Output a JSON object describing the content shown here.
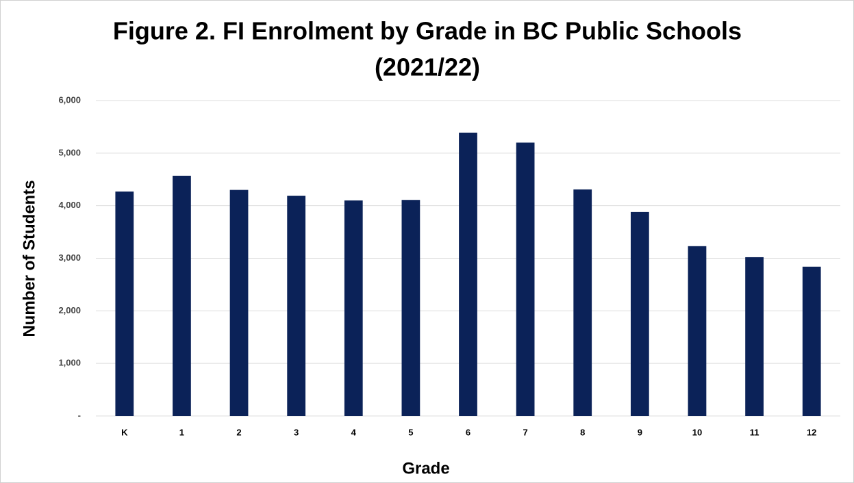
{
  "chart_data": {
    "type": "bar",
    "title": [
      "Figure 2. FI Enrolment by Grade in BC Public Schools",
      "(2021/22)"
    ],
    "x_label": "Grade",
    "y_label": "Number of Students",
    "categories": [
      "K",
      "1",
      "2",
      "3",
      "4",
      "5",
      "6",
      "7",
      "8",
      "9",
      "10",
      "11",
      "12"
    ],
    "values": [
      4270,
      4570,
      4300,
      4190,
      4100,
      4110,
      5390,
      5200,
      4310,
      3880,
      3230,
      3020,
      2840
    ],
    "color": "#0b2258",
    "ylim": [
      0,
      6000
    ],
    "yticks": [
      {
        "value": 0,
        "label": "-"
      },
      {
        "value": 1000,
        "label": "1,000"
      },
      {
        "value": 2000,
        "label": "2,000"
      },
      {
        "value": 3000,
        "label": "3,000"
      },
      {
        "value": 4000,
        "label": "4,000"
      },
      {
        "value": 5000,
        "label": "5,000"
      },
      {
        "value": 6000,
        "label": "6,000"
      }
    ],
    "grid": true
  }
}
